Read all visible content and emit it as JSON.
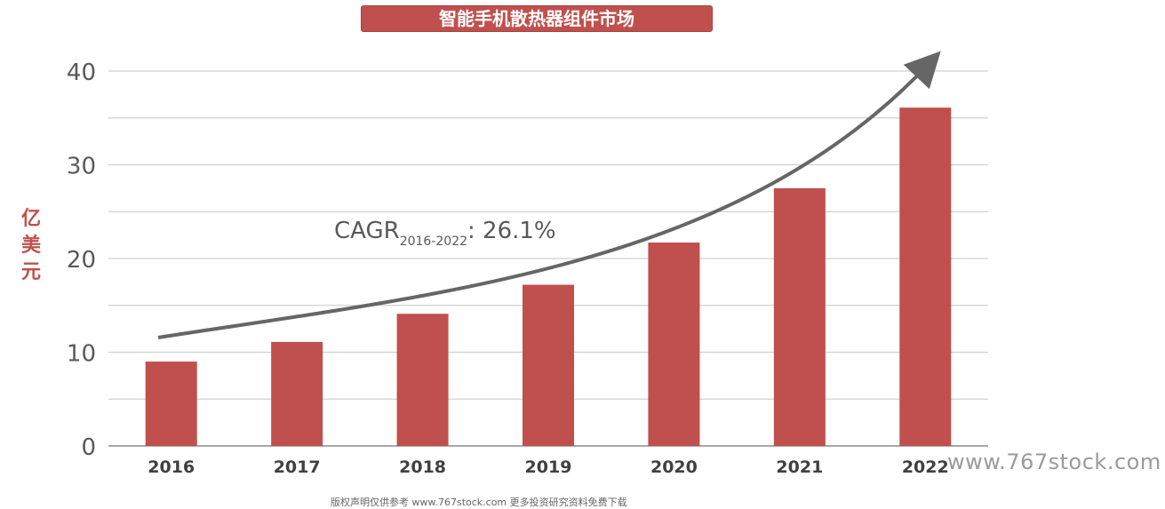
{
  "chart_data": {
    "type": "bar",
    "title": "智能手机散热器组件市场",
    "ylabel": "亿美元",
    "xlabel": "",
    "categories": [
      "2016",
      "2017",
      "2018",
      "2019",
      "2020",
      "2021",
      "2022"
    ],
    "values": [
      9.0,
      11.1,
      14.1,
      17.2,
      21.7,
      27.5,
      36.1
    ],
    "ylim": [
      0,
      40
    ],
    "yticks": [
      "0",
      "10",
      "20",
      "30",
      "40"
    ],
    "grid": true,
    "bar_color": "#c0504d",
    "annotation": {
      "prefix": "CAGR",
      "subscript": "2016-2022",
      "suffix": ": 26.1%"
    }
  },
  "watermark": "www.767stock.com",
  "footer_note": "版权声明仅供参考 www.767stock.com 更多投资研究资料免费下载"
}
